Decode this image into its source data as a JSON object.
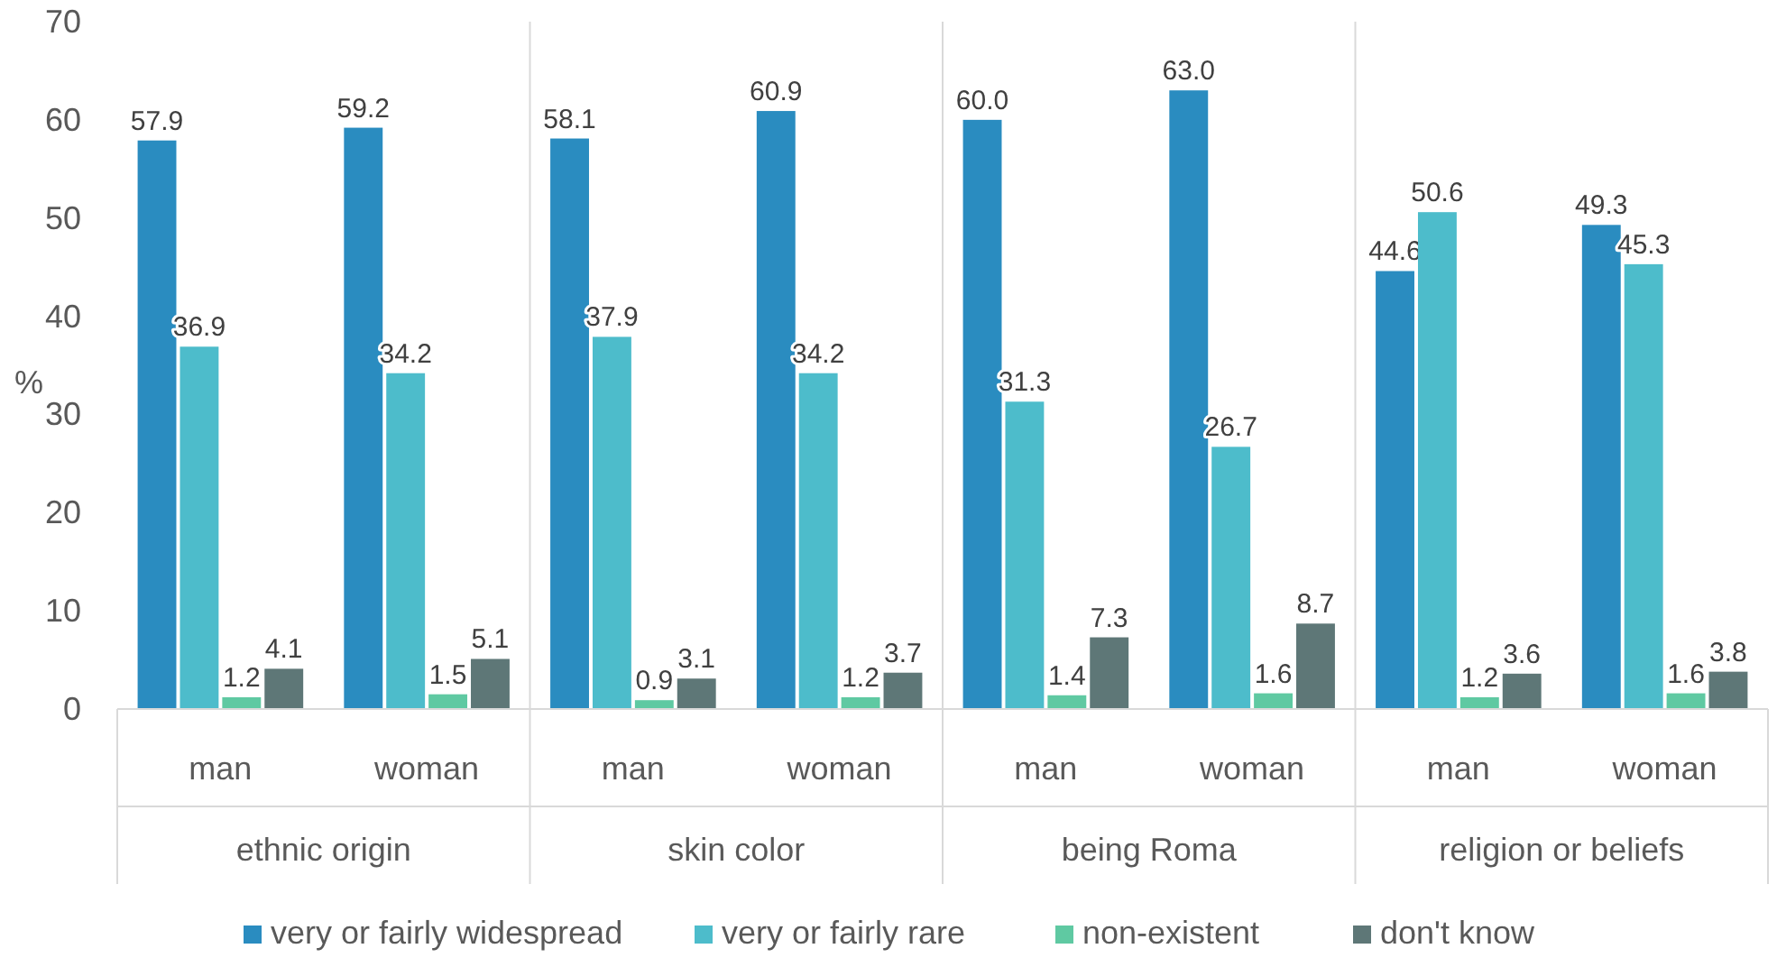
{
  "chart_data": {
    "type": "bar",
    "ylabel": "%",
    "categories": [
      "man",
      "woman",
      "man",
      "woman",
      "man",
      "woman",
      "man",
      "woman"
    ],
    "annotations": [
      "ethnic origin",
      "skin color",
      "being Roma",
      "religion or beliefs"
    ],
    "series": [
      {
        "name": "very or fairly widespread",
        "color": "#2a8cc0",
        "values": [
          57.9,
          59.2,
          58.1,
          60.9,
          60.0,
          63.0,
          44.6,
          49.3
        ],
        "value_labels": [
          "57.9",
          "59.2",
          "58.1",
          "60.9",
          "60.0",
          "63.0",
          "44.6",
          "49.3"
        ]
      },
      {
        "name": "very or fairly rare",
        "color": "#4dbccb",
        "values": [
          36.9,
          34.2,
          37.9,
          34.2,
          31.3,
          26.7,
          50.6,
          45.3
        ],
        "value_labels": [
          "36.9",
          "34.2",
          "37.9",
          "34.2",
          "31.3",
          "26.7",
          "50.6",
          "45.3"
        ]
      },
      {
        "name": "non-existent",
        "color": "#5fc9a2",
        "values": [
          1.2,
          1.5,
          0.9,
          1.2,
          1.4,
          1.6,
          1.2,
          1.6
        ],
        "value_labels": [
          "1.2",
          "1.5",
          "0.9",
          "1.2",
          "1.4",
          "1.6",
          "1.2",
          "1.6"
        ]
      },
      {
        "name": "don't know",
        "color": "#5e7777",
        "values": [
          4.1,
          5.1,
          3.1,
          3.7,
          7.3,
          8.7,
          3.6,
          3.8
        ],
        "value_labels": [
          "4.1",
          "5.1",
          "3.1",
          "3.7",
          "7.3",
          "8.7",
          "3.6",
          "3.8"
        ]
      }
    ],
    "ylim": [
      0,
      70
    ],
    "yticks": [
      0,
      10,
      20,
      30,
      40,
      50,
      60,
      70
    ],
    "legend": "bottom",
    "grid": false
  }
}
